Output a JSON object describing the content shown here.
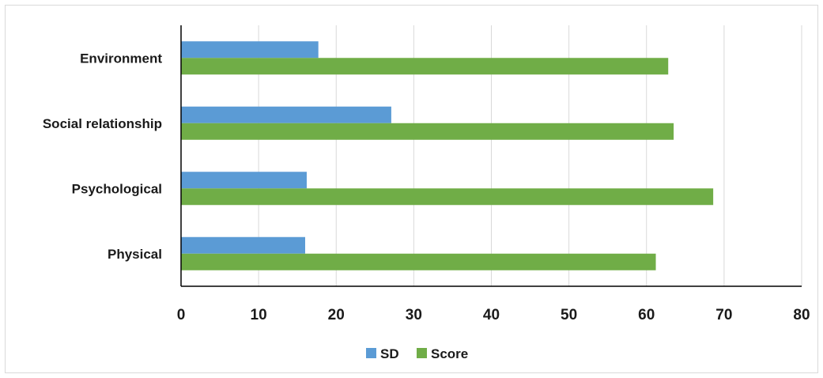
{
  "chart_data": {
    "type": "bar",
    "orientation": "horizontal",
    "categories": [
      "Environment",
      "Social relationship",
      "Psychological",
      "Physical"
    ],
    "series": [
      {
        "name": "SD",
        "color": "#5b9bd5",
        "values": [
          17.7,
          27.1,
          16.2,
          16.0
        ]
      },
      {
        "name": "Score",
        "color": "#70ad47",
        "values": [
          62.8,
          63.5,
          68.6,
          61.2
        ]
      }
    ],
    "xlim": [
      0,
      80
    ],
    "xticks": [
      0,
      10,
      20,
      30,
      40,
      50,
      60,
      70,
      80
    ],
    "grid": true,
    "legend_position": "bottom"
  }
}
